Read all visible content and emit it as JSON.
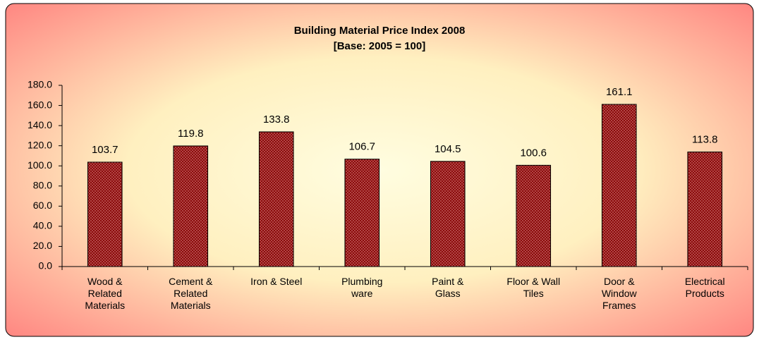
{
  "chart_data": {
    "type": "bar",
    "title": "Building Material Price Index 2008",
    "subtitle": "[Base: 2005 = 100]",
    "categories": [
      "Wood & Related Materials",
      "Cement & Related Materials",
      "Iron & Steel",
      "Plumbing ware",
      "Paint & Glass",
      "Floor & Wall Tiles",
      "Door & Window Frames",
      "Electrical Products"
    ],
    "values": [
      103.7,
      119.8,
      133.8,
      106.7,
      104.5,
      100.6,
      161.1,
      113.8
    ],
    "color": "#8b0a0a",
    "ylim": [
      0,
      180
    ],
    "yticks": [
      {
        "value": 0,
        "label": "0.0"
      },
      {
        "value": 20,
        "label": "20.0"
      },
      {
        "value": 40,
        "label": "40.0"
      },
      {
        "value": 60,
        "label": "60.0"
      },
      {
        "value": 80,
        "label": "80.0"
      },
      {
        "value": 100,
        "label": "100.0"
      },
      {
        "value": 120,
        "label": "120.0"
      },
      {
        "value": 140,
        "label": "140.0"
      },
      {
        "value": 160,
        "label": "160.0"
      },
      {
        "value": 180,
        "label": "180.0"
      }
    ],
    "grid": false
  }
}
